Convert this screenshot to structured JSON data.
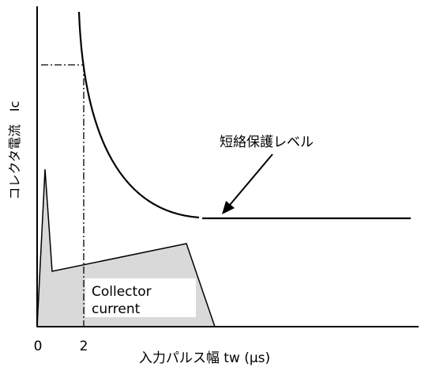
{
  "diagram": {
    "y_axis_label": "コレクタ電流　Ic",
    "x_axis_label": "入力パルス幅 tw (µs)",
    "x_tick_0": "0",
    "x_tick_2": "2",
    "protection_label": "短絡保護レベル",
    "collector_label_line1": "Collector",
    "collector_label_line2": "current"
  },
  "colors": {
    "line": "#000000",
    "fill_current": "#d9d9d9",
    "label_box": "#ffffff"
  }
}
